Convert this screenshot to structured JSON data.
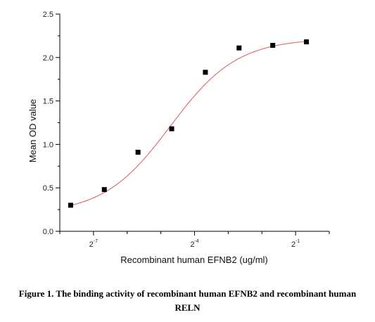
{
  "chart_data": {
    "type": "scatter",
    "xlabel": "Recombinant human  EFNB2 (ug/ml)",
    "ylabel": "Mean OD value",
    "x_scale": "log2",
    "xlim": [
      0.00390625,
      1
    ],
    "ylim": [
      0,
      2.5
    ],
    "x_ticks": [
      {
        "base": "2",
        "exp": "-7",
        "value": 0.0078125
      },
      {
        "base": "2",
        "exp": "-4",
        "value": 0.0625
      },
      {
        "base": "2",
        "exp": "-1",
        "value": 0.5
      }
    ],
    "y_ticks": [
      "0.0",
      "0.5",
      "1.0",
      "1.5",
      "2.0",
      "2.5"
    ],
    "series": [
      {
        "marker": "square",
        "color": "#000000",
        "x": [
          0.0048828125,
          0.009765625,
          0.01953125,
          0.0390625,
          0.078125,
          0.15625,
          0.3125,
          0.625
        ],
        "y": [
          0.3,
          0.48,
          0.91,
          1.18,
          1.83,
          2.11,
          2.14,
          2.18
        ]
      }
    ],
    "fit_curve": {
      "color": "#e06666",
      "model": "4PL",
      "bottom": 0.2,
      "top": 2.22,
      "ec50": 0.038,
      "hill": 1.45
    },
    "grid": false
  },
  "caption": {
    "line1": "Figure 1. The binding activity of recombinant human EFNB2 and recombinant human",
    "line2": "RELN"
  }
}
